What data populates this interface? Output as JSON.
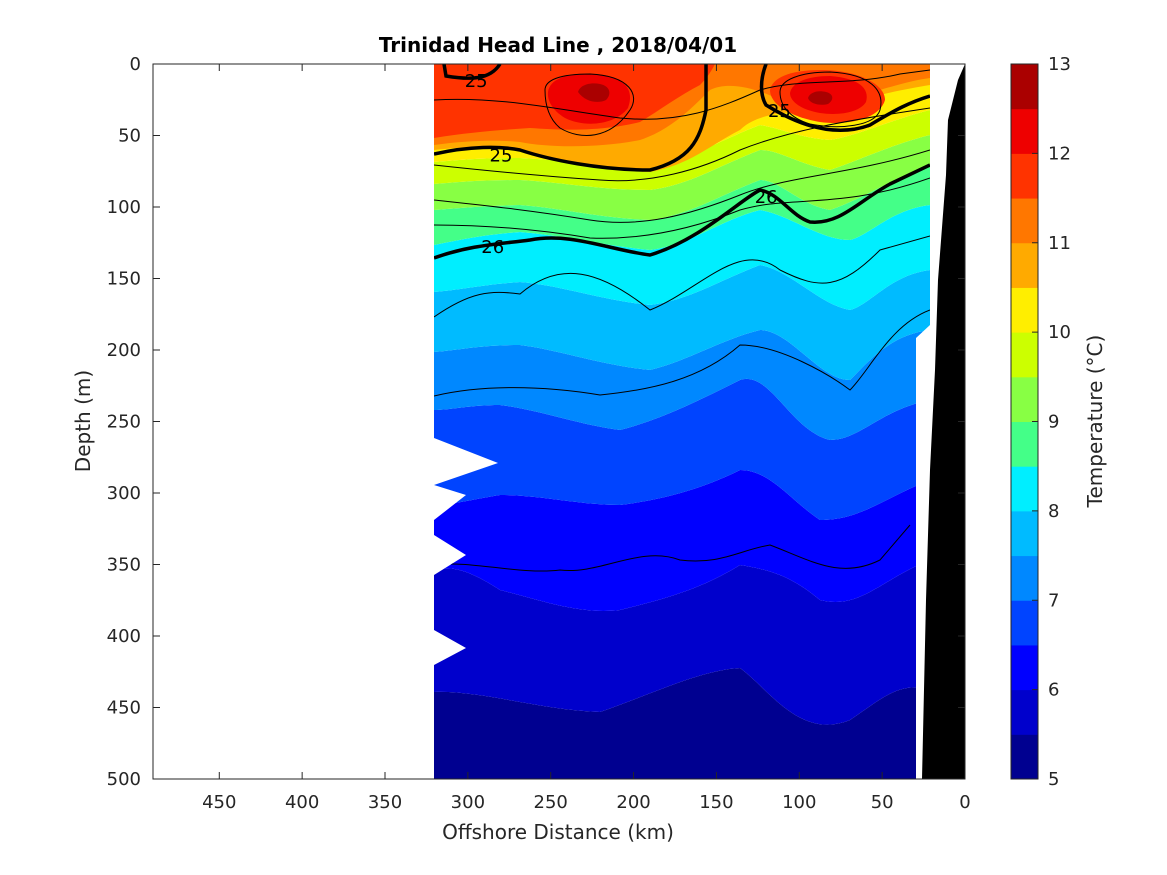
{
  "chart_data": {
    "type": "heatmap",
    "title": "Trinidad Head Line , 2018/04/01",
    "xlabel": "Offshore Distance (km)",
    "ylabel": "Depth (m)",
    "colorbar_label": "Temperature (°C)",
    "xlim": [
      490,
      0
    ],
    "ylim": [
      0,
      500
    ],
    "x_reversed": true,
    "y_reversed": true,
    "x_ticks": [
      450,
      400,
      350,
      300,
      250,
      200,
      150,
      100,
      50,
      0
    ],
    "y_ticks": [
      0,
      50,
      100,
      150,
      200,
      250,
      300,
      350,
      400,
      450,
      500
    ],
    "colorbar": {
      "range": [
        5,
        13
      ],
      "ticks": [
        5,
        6,
        7,
        8,
        9,
        10,
        11,
        12,
        13
      ],
      "colors": [
        "#000090",
        "#0000cc",
        "#0000ff",
        "#0044ff",
        "#0088ff",
        "#00bbff",
        "#00eeff",
        "#44ff88",
        "#88ff44",
        "#ccff00",
        "#ffee00",
        "#ffaa00",
        "#ff7700",
        "#ff3300",
        "#ee0000",
        "#aa0000"
      ]
    },
    "contour_labels": [
      {
        "text": "25",
        "x": 295,
        "y": 12
      },
      {
        "text": "25",
        "x": 280,
        "y": 64
      },
      {
        "text": "25",
        "x": 112,
        "y": 33
      },
      {
        "text": "26",
        "x": 120,
        "y": 93
      },
      {
        "text": "26",
        "x": 285,
        "y": 128
      }
    ],
    "data_extent": {
      "x_min": 20,
      "x_max": 320,
      "z_max": 500
    },
    "bathymetry": {
      "color": "#000000"
    }
  }
}
